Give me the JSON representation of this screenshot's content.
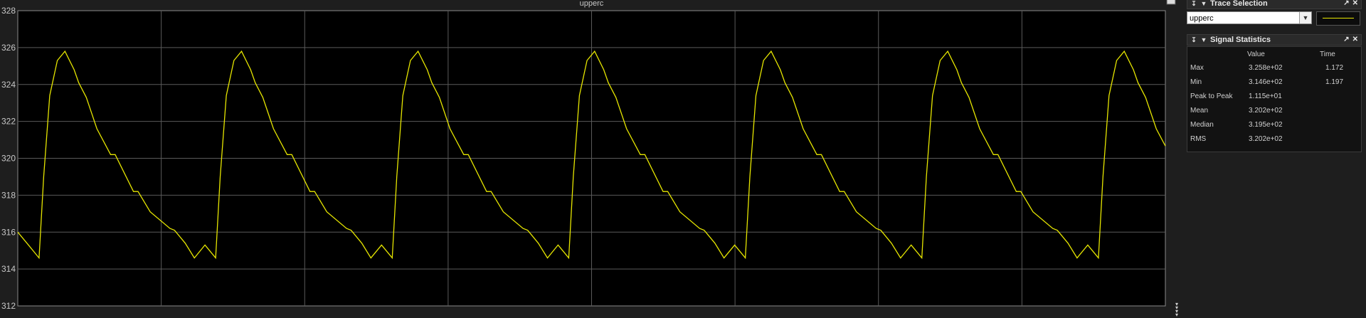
{
  "plot": {
    "title": "upperc",
    "y_ticks": [
      "328",
      "326",
      "324",
      "322",
      "320",
      "318",
      "316",
      "314",
      "312"
    ]
  },
  "chart_data": {
    "type": "line",
    "title": "upperc",
    "xlabel": "",
    "ylabel": "",
    "ylim": [
      312,
      328
    ],
    "grid": true,
    "series": [
      {
        "color": "#e6e600",
        "x": [
          0.0,
          0.007,
          0.014,
          0.017,
          0.021,
          0.026,
          0.031,
          0.037,
          0.04,
          0.045,
          0.052,
          0.061,
          0.064,
          0.076,
          0.079,
          0.087,
          0.1,
          0.103,
          0.11,
          0.116
        ],
        "y": [
          316.0,
          315.3,
          314.6,
          319.0,
          323.4,
          325.3,
          325.8,
          324.8,
          324.1,
          323.3,
          321.6,
          320.2,
          320.2,
          318.2,
          318.2,
          317.1,
          316.2,
          316.1,
          315.4,
          314.6
        ],
        "period": 0.116,
        "cycles_visible": 6.5
      }
    ]
  },
  "trace_selection": {
    "title": "Trace Selection",
    "selected": "upperc",
    "line_color": "#e6e600"
  },
  "signal_statistics": {
    "title": "Signal Statistics",
    "columns": {
      "value": "Value",
      "time": "Time"
    },
    "rows": [
      {
        "name": "Max",
        "value": "3.258e+02",
        "time": "1.172"
      },
      {
        "name": "Min",
        "value": "3.146e+02",
        "time": "1.197"
      },
      {
        "name": "Peak to Peak",
        "value": "1.115e+01",
        "time": ""
      },
      {
        "name": "Mean",
        "value": "3.202e+02",
        "time": ""
      },
      {
        "name": "Median",
        "value": "3.195e+02",
        "time": ""
      },
      {
        "name": "RMS",
        "value": "3.202e+02",
        "time": ""
      }
    ]
  },
  "icons": {
    "panel_pin": "pin-icon",
    "panel_collapse": "collapse-triangle-icon",
    "panel_undock": "undock-icon",
    "panel_close": "close-icon",
    "dropdown": "chevron-down-icon"
  }
}
